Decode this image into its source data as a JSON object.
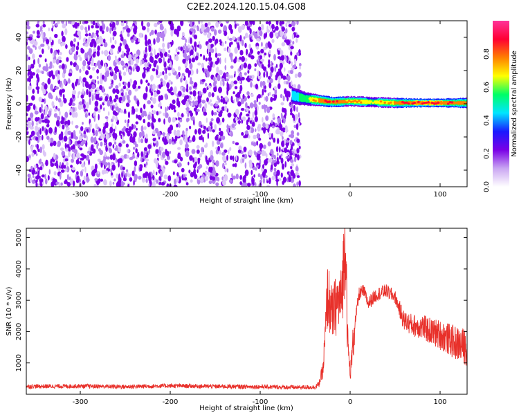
{
  "figure_title": "C2E2.2024.120.15.04.G08",
  "chart_data": [
    {
      "type": "heatmap",
      "xlabel": "Height of straight line (km)",
      "ylabel": "Frequency (Hz)",
      "xlim": [
        -360,
        130
      ],
      "ylim": [
        -50,
        50
      ],
      "xticks": [
        -300,
        -200,
        -100,
        0,
        100
      ],
      "yticks": [
        -40,
        -20,
        0,
        20,
        40
      ],
      "colorbar": {
        "label": "Normalized spectral amplitude",
        "range": [
          0,
          1
        ],
        "ticks": [
          "0.0",
          "0.2",
          "0.4",
          "0.6",
          "0.8"
        ],
        "colors": [
          "#ffffff",
          "#c9a6f2",
          "#7a00e6",
          "#1a1aff",
          "#00e5ff",
          "#00ff66",
          "#ffff00",
          "#ff8000",
          "#ff0033",
          "#ff3399"
        ]
      },
      "noise_region": {
        "x_start": -360,
        "x_end": -60,
        "amplitude": 0.2
      },
      "signal_track": [
        {
          "x": -65,
          "freq": 5,
          "amplitude": 0.45,
          "width_hz": 5
        },
        {
          "x": -50,
          "freq": 3,
          "amplitude": 0.55,
          "width_hz": 4
        },
        {
          "x": -35,
          "freq": 2,
          "amplitude": 0.75,
          "width_hz": 3.5
        },
        {
          "x": -20,
          "freq": 1,
          "amplitude": 0.85,
          "width_hz": 3
        },
        {
          "x": 0,
          "freq": 1.5,
          "amplitude": 0.7,
          "width_hz": 3
        },
        {
          "x": 25,
          "freq": 1,
          "amplitude": 0.6,
          "width_hz": 3
        },
        {
          "x": 50,
          "freq": 0.5,
          "amplitude": 0.75,
          "width_hz": 3
        },
        {
          "x": 75,
          "freq": 0.5,
          "amplitude": 0.9,
          "width_hz": 2.5
        },
        {
          "x": 100,
          "freq": 0.5,
          "amplitude": 0.88,
          "width_hz": 2.5
        },
        {
          "x": 130,
          "freq": 0.5,
          "amplitude": 0.75,
          "width_hz": 3
        }
      ]
    },
    {
      "type": "line",
      "xlabel": "Height of straight line (km)",
      "ylabel": "SNR (10 * v/v)",
      "xlim": [
        -360,
        130
      ],
      "ylim": [
        0,
        5300
      ],
      "xticks": [
        -300,
        -200,
        -100,
        0,
        100
      ],
      "yticks": [
        1000,
        2000,
        3000,
        4000,
        5000
      ],
      "line_color": "#e8302a",
      "series": [
        {
          "x": [
            -360,
            -300,
            -250,
            -200,
            -150,
            -100,
            -60,
            -40,
            -35,
            -30,
            -27,
            -25,
            -20,
            -15,
            -10,
            -7,
            -5,
            -3,
            0,
            5,
            10,
            15,
            20,
            30,
            40,
            50,
            55,
            60,
            70,
            80,
            90,
            100,
            110,
            120,
            130
          ],
          "values": [
            250,
            260,
            240,
            270,
            250,
            240,
            220,
            230,
            300,
            800,
            2200,
            3200,
            2500,
            2900,
            3000,
            4200,
            5300,
            1800,
            600,
            2200,
            3200,
            3300,
            2900,
            3200,
            3300,
            3100,
            2700,
            2350,
            2200,
            2150,
            2000,
            1900,
            1750,
            1600,
            1500
          ]
        }
      ]
    }
  ]
}
